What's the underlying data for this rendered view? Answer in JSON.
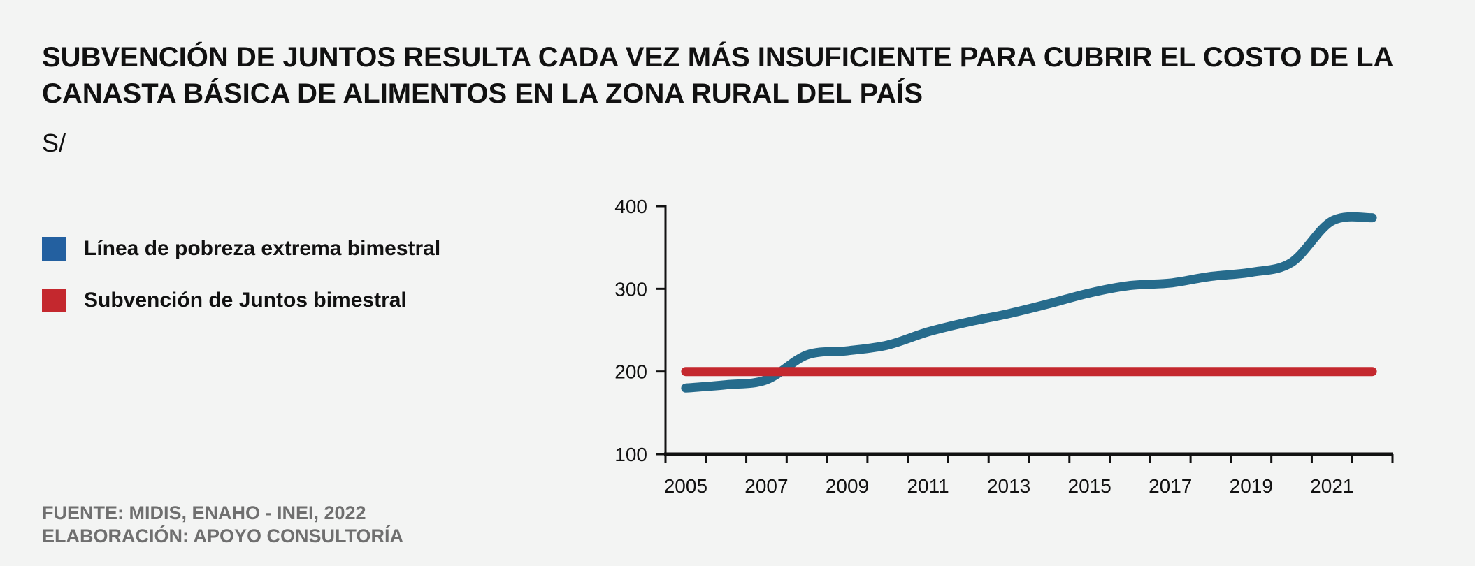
{
  "title": "SUBVENCIÓN DE JUNTOS RESULTA CADA VEZ MÁS INSUFICIENTE PARA CUBRIR EL COSTO DE LA CANASTA BÁSICA DE ALIMENTOS EN LA ZONA RURAL DEL PAÍS",
  "unit": "S/",
  "legend": [
    {
      "label": "Línea de pobreza extrema bimestral",
      "color": "#2360a0"
    },
    {
      "label": "Subvención de Juntos bimestral",
      "color": "#c4282e"
    }
  ],
  "source": {
    "line1": "FUENTE: MIDIS, ENAHO - INEI, 2022",
    "line2": "ELABORACIÓN: APOYO CONSULTORÍA"
  },
  "chart_data": {
    "type": "line",
    "x": [
      2005,
      2006,
      2007,
      2008,
      2009,
      2010,
      2011,
      2012,
      2013,
      2014,
      2015,
      2016,
      2017,
      2018,
      2019,
      2020,
      2021,
      2022
    ],
    "series": [
      {
        "name": "Línea de pobreza extrema bimestral",
        "color": "#266b8c",
        "values": [
          180,
          184,
          190,
          220,
          225,
          232,
          248,
          260,
          270,
          282,
          295,
          304,
          307,
          315,
          320,
          332,
          382,
          386
        ]
      },
      {
        "name": "Subvención de Juntos bimestral",
        "color": "#c4282e",
        "values": [
          200,
          200,
          200,
          200,
          200,
          200,
          200,
          200,
          200,
          200,
          200,
          200,
          200,
          200,
          200,
          200,
          200,
          200
        ]
      }
    ],
    "x_tick_labels": [
      "2005",
      "2007",
      "2009",
      "2011",
      "2013",
      "2015",
      "2017",
      "2019",
      "2021"
    ],
    "y_ticks": [
      100,
      200,
      300,
      400
    ],
    "ylim": [
      100,
      400
    ],
    "xlim": [
      2004.5,
      2022.5
    ],
    "xlabel": "",
    "ylabel": "",
    "grid": false,
    "legend_position": "left"
  }
}
